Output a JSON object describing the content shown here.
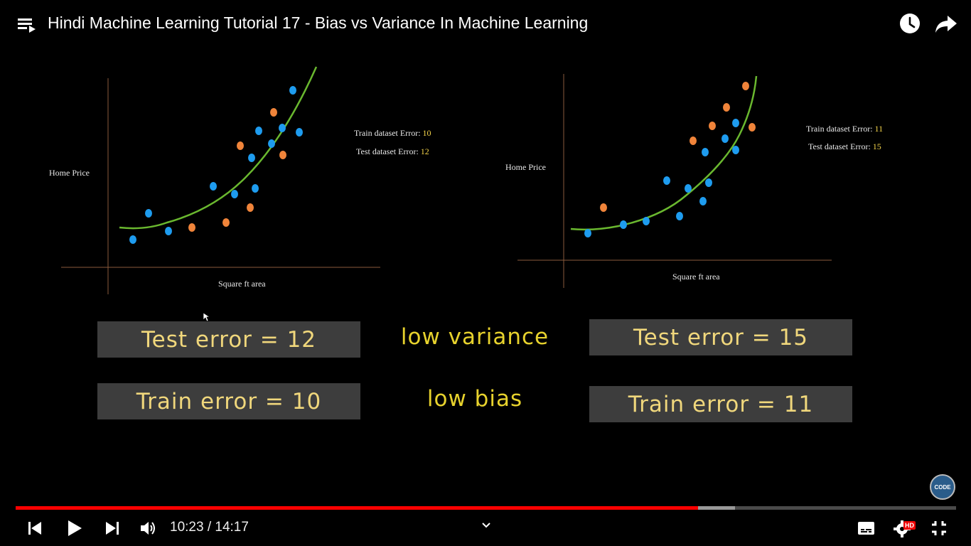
{
  "header": {
    "title": "Hindi Machine Learning Tutorial 17 - Bias vs Variance In Machine Learning"
  },
  "icons": {
    "playlist": "playlist-icon",
    "watch_later": "clock-icon",
    "share": "share-icon"
  },
  "slide": {
    "left_chart": {
      "ylabel": "Home Price",
      "xlabel": "Square ft area",
      "train_label": "Train dataset Error:",
      "train_value": "10",
      "test_label": "Test dataset Error:",
      "test_value": "12"
    },
    "right_chart": {
      "ylabel": "Home Price",
      "xlabel": "Square ft area",
      "train_label": "Train dataset Error:",
      "train_value": "11",
      "test_label": "Test dataset Error:",
      "test_value": "15"
    },
    "left_test_box": "Test error = 12",
    "left_train_box": "Train error = 10",
    "right_test_box": "Test error = 15",
    "right_train_box": "Train error = 11",
    "middle_top": "low variance",
    "middle_bottom": "low bias",
    "logo_text": "CODE"
  },
  "player": {
    "time_text": "10:23 / 14:17",
    "progress_played": 0.726,
    "progress_buffered": 0.765,
    "hd_badge": "HD"
  },
  "colors": {
    "progress": "#ff0000",
    "train_point": "#1e9cef",
    "test_point": "#f0843a",
    "fit_curve": "#6ab82f",
    "slide_text": "#f0d77c"
  }
}
